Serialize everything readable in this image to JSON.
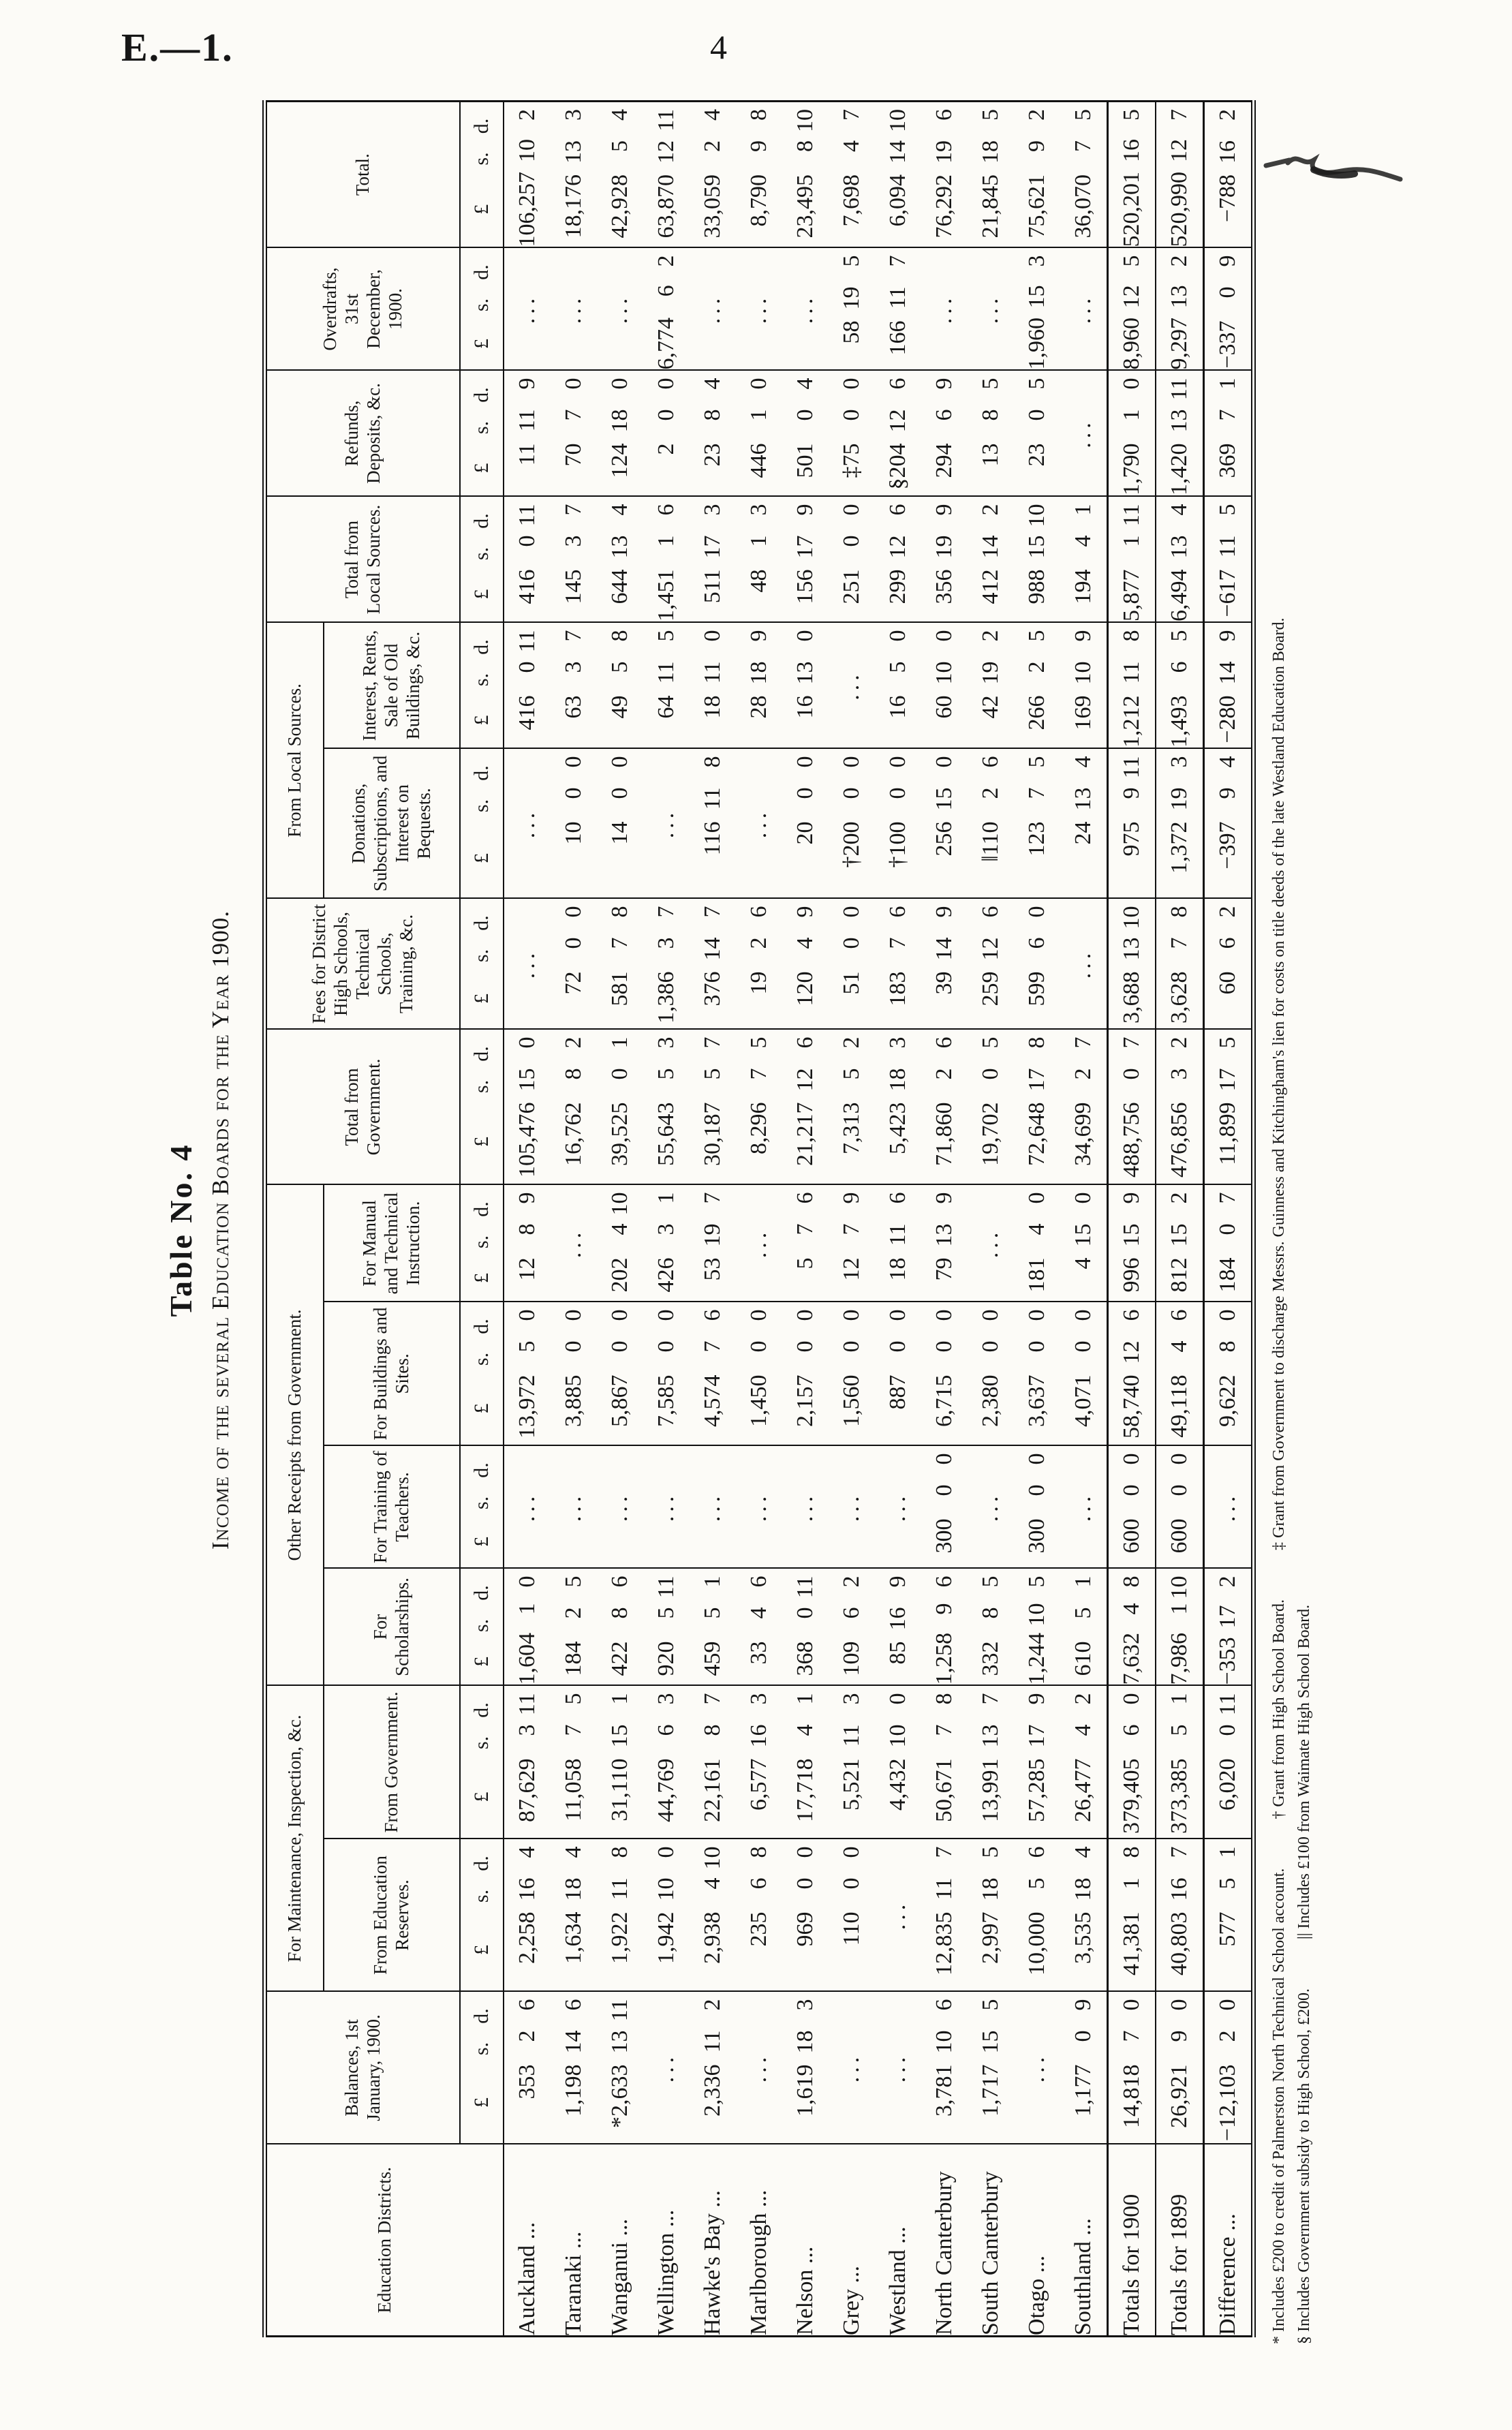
{
  "page": {
    "doc_ref": "E.—1.",
    "page_number": "4"
  },
  "caption": {
    "table_no": "Table No. 4",
    "title": "Income of the several Education Boards for the Year 1900."
  },
  "table": {
    "currency_header": [
      "£",
      "s.",
      "d."
    ],
    "columns": [
      {
        "key": "districts",
        "label": "Education Districts.",
        "money": false
      },
      {
        "key": "balances",
        "label": "Balances, 1st January, 1900.",
        "money": true
      },
      {
        "key": "education_reserves",
        "label": "From Education Reserves.",
        "money": true,
        "group": "For Maintenance, Inspection, &c."
      },
      {
        "key": "govt_maintenance",
        "label": "From Government.",
        "money": true,
        "group": "For Maintenance, Inspection, &c."
      },
      {
        "key": "scholarships",
        "label": "For Scholarships.",
        "money": true,
        "group": "Other Receipts from Government."
      },
      {
        "key": "training_teachers",
        "label": "For Training of Teachers.",
        "money": true,
        "group": "Other Receipts from Government."
      },
      {
        "key": "buildings_sites",
        "label": "For Buildings and Sites.",
        "money": true,
        "group": "Other Receipts from Government."
      },
      {
        "key": "manual_technical",
        "label": "For Manual and Technical Instruction.",
        "money": true,
        "group": "Other Receipts from Government."
      },
      {
        "key": "total_government",
        "label": "Total from Government.",
        "money": true
      },
      {
        "key": "fees",
        "label": "Fees for District High Schools, Technical Schools, Training, &c.",
        "money": true
      },
      {
        "key": "donations",
        "label": "Donations, Subscriptions, and Interest on Bequests.",
        "money": true,
        "group": "From Local Sources."
      },
      {
        "key": "interest_rents",
        "label": "Interest, Rents, Sale of Old Buildings, &c.",
        "money": true,
        "group": "From Local Sources."
      },
      {
        "key": "total_local",
        "label": "Total from Local Sources.",
        "money": true
      },
      {
        "key": "refunds",
        "label": "Refunds, Deposits, &c.",
        "money": true
      },
      {
        "key": "overdrafts",
        "label": "Overdrafts, 31st December, 1900.",
        "money": true
      },
      {
        "key": "total",
        "label": "Total.",
        "money": true
      }
    ],
    "rows": [
      {
        "district": "Auckland ...",
        "rule": null,
        "values": [
          "353 2 6",
          "2,258 16 4",
          "87,629 3 11",
          "1,604 1 0",
          "...",
          "13,972 5 0",
          "12 8 9",
          "105,476 15 0",
          "...",
          "...",
          "416 0 11",
          "416 0 11",
          "11 11 9",
          "...",
          "106,257 10 2"
        ]
      },
      {
        "district": "Taranaki ...",
        "rule": null,
        "values": [
          "1,198 14 6",
          "1,634 18 4",
          "11,058 7 5",
          "184 2 5",
          "...",
          "3,885 0 0",
          "...",
          "16,762 8 2",
          "72 0 0",
          "10 0 0",
          "63 3 7",
          "145 3 7",
          "70 7 0",
          "...",
          "18,176 13 3"
        ]
      },
      {
        "district": "Wanganui ...",
        "rule": null,
        "values": [
          "*2,633 13 11",
          "1,922 11 8",
          "31,110 15 1",
          "422 8 6",
          "...",
          "5,867 0 0",
          "202 4 10",
          "39,525 0 1",
          "581 7 8",
          "14 0 0",
          "49 5 8",
          "644 13 4",
          "124 18 0",
          "...",
          "42,928 5 4"
        ]
      },
      {
        "district": "Wellington ...",
        "rule": null,
        "values": [
          "...",
          "1,942 10 0",
          "44,769 6 3",
          "920 5 11",
          "...",
          "7,585 0 0",
          "426 3 1",
          "55,643 5 3",
          "1,386 3 7",
          "...",
          "64 11 5",
          "1,451 1 6",
          "2 0 0",
          "6,774 6 2",
          "63,870 12 11"
        ]
      },
      {
        "district": "Hawke's Bay ...",
        "rule": null,
        "values": [
          "2,336 11 2",
          "2,938 4 10",
          "22,161 8 7",
          "459 5 1",
          "...",
          "4,574 7 6",
          "53 19 7",
          "30,187 5 7",
          "376 14 7",
          "116 11 8",
          "18 11 0",
          "511 17 3",
          "23 8 4",
          "...",
          "33,059 2 4"
        ]
      },
      {
        "district": "Marlborough ...",
        "rule": null,
        "values": [
          "...",
          "235 6 8",
          "6,577 16 3",
          "33 4 6",
          "...",
          "1,450 0 0",
          "...",
          "8,296 7 5",
          "19 2 6",
          "...",
          "28 18 9",
          "48 1 3",
          "446 1 0",
          "...",
          "8,790 9 8"
        ]
      },
      {
        "district": "Nelson ...",
        "rule": null,
        "values": [
          "1,619 18 3",
          "969 0 0",
          "17,718 4 1",
          "368 0 11",
          "...",
          "2,157 0 0",
          "5 7 6",
          "21,217 12 6",
          "120 4 9",
          "20 0 0",
          "16 13 0",
          "156 17 9",
          "501 0 4",
          "...",
          "23,495 8 10"
        ]
      },
      {
        "district": "Grey ...",
        "rule": null,
        "values": [
          "...",
          "110 0 0",
          "5,521 11 3",
          "109 6 2",
          "...",
          "1,560 0 0",
          "12 7 9",
          "7,313 5 2",
          "51 0 0",
          "†200 0 0",
          "...",
          "251 0 0",
          "‡75 0 0",
          "58 19 5",
          "7,698 4 7"
        ]
      },
      {
        "district": "Westland ...",
        "rule": null,
        "values": [
          "...",
          "...",
          "4,432 10 0",
          "85 16 9",
          "...",
          "887 0 0",
          "18 11 6",
          "5,423 18 3",
          "183 7 6",
          "†100 0 0",
          "16 5 0",
          "299 12 6",
          "§204 12 6",
          "166 11 7",
          "6,094 14 10"
        ]
      },
      {
        "district": "North Canterbury",
        "rule": null,
        "values": [
          "3,781 10 6",
          "12,835 11 7",
          "50,671 7 8",
          "1,258 9 6",
          "300 0 0",
          "6,715 0 0",
          "79 13 9",
          "71,860 2 6",
          "39 14 9",
          "256 15 0",
          "60 10 0",
          "356 19 9",
          "294 6 9",
          "...",
          "76,292 19 6"
        ]
      },
      {
        "district": "South Canterbury",
        "rule": null,
        "values": [
          "1,717 15 5",
          "2,997 18 5",
          "13,991 13 7",
          "332 8 5",
          "...",
          "2,380 0 0",
          "...",
          "19,702 0 5",
          "259 12 6",
          "||110 2 6",
          "42 19 2",
          "412 14 2",
          "13 8 5",
          "...",
          "21,845 18 5"
        ]
      },
      {
        "district": "Otago ...",
        "rule": null,
        "values": [
          "...",
          "10,000 5 6",
          "57,285 17 9",
          "1,244 10 5",
          "300 0 0",
          "3,637 0 0",
          "181 4 0",
          "72,648 17 8",
          "599 6 0",
          "123 7 5",
          "266 2 5",
          "988 15 10",
          "23 0 5",
          "1,960 15 3",
          "75,621 9 2"
        ]
      },
      {
        "district": "Southland ...",
        "rule": null,
        "values": [
          "1,177 0 9",
          "3,535 18 4",
          "26,477 4 2",
          "610 5 1",
          "...",
          "4,071 0 0",
          "4 15 0",
          "34,699 2 7",
          "...",
          "24 13 4",
          "169 10 9",
          "194 4 1",
          "...",
          "...",
          "36,070 7 5"
        ]
      },
      {
        "district": "Totals for 1900",
        "rule": "heavy",
        "values": [
          "14,818 7 0",
          "41,381 1 8",
          "379,405 6 0",
          "7,632 4 8",
          "600 0 0",
          "58,740 12 6",
          "996 15 9",
          "488,756 0 7",
          "3,688 13 10",
          "975 9 11",
          "1,212 11 8",
          "5,877 1 11",
          "1,790 1 0",
          "8,960 12 5",
          "520,201 16 5"
        ]
      },
      {
        "district": "Totals for 1899",
        "rule": "light",
        "values": [
          "26,921 9 0",
          "40,803 16 7",
          "373,385 5 1",
          "7,986 1 10",
          "600 0 0",
          "49,118 4 6",
          "812 15 2",
          "476,856 3 2",
          "3,628 7 8",
          "1,372 19 3",
          "1,493 6 5",
          "6,494 13 4",
          "1,420 13 11",
          "9,297 13 2",
          "520,990 12 7"
        ]
      },
      {
        "district": "Difference ...",
        "rule": "heavy",
        "values": [
          "-12,103 2 0",
          "577 5 1",
          "6,020 0 11",
          "-353 17 2",
          "...",
          "9,622 8 0",
          "184 0 7",
          "11,899 17 5",
          "60 6 2",
          "-397 9 4",
          "-280 14 9",
          "-617 11 5",
          "369 7 1",
          "-337 0 9",
          "-788 16 2"
        ]
      }
    ]
  },
  "footnotes": [
    "* Includes £200 to credit of Palmerston North Technical School account.   † Grant from High School Board.   ‡ Grant from Government to discharge Messrs. Guinness and Kitchingham's lien for costs on title deeds of the late Westland Education Board.",
    "§ Includes Government subsidy to High School, £200.   || Includes £100 from Waimate High School Board."
  ]
}
